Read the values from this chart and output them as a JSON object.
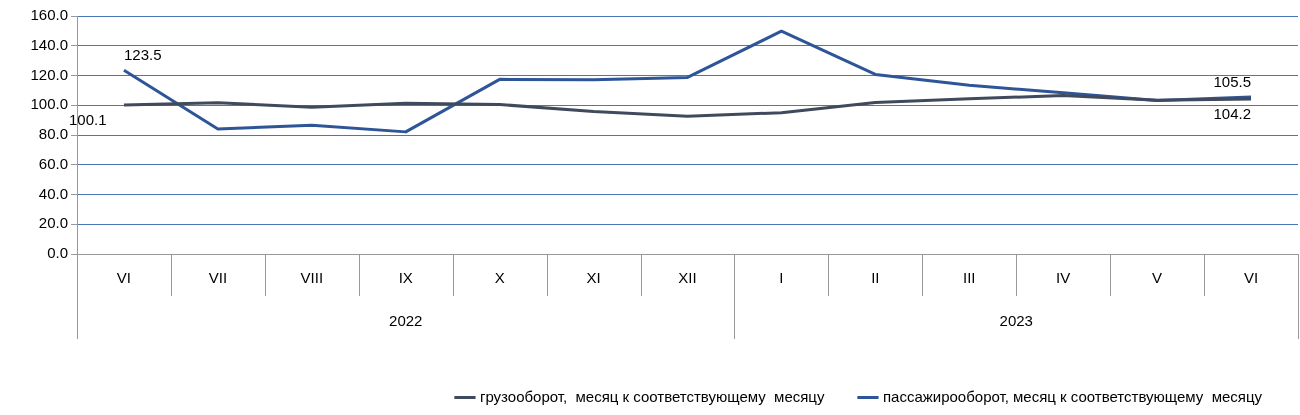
{
  "chart_data": {
    "type": "line",
    "categories": [
      "VI",
      "VII",
      "VIII",
      "IX",
      "X",
      "XI",
      "XII",
      "I",
      "II",
      "III",
      "IV",
      "V",
      "VI"
    ],
    "series": [
      {
        "name": "грузооборот,  месяц к соответствующему  месяцу",
        "color": "#3f4a5c",
        "values": [
          100.1,
          101.6,
          98.7,
          101.3,
          100.5,
          95.8,
          92.6,
          95.0,
          101.8,
          104.3,
          106.6,
          103.4,
          104.2
        ],
        "value_labels": [
          "100.1",
          null,
          null,
          null,
          null,
          null,
          null,
          null,
          null,
          null,
          null,
          null,
          "104.2"
        ]
      },
      {
        "name": "пассажирооборот, месяц к соответствующему  месяцу",
        "color": "#2e5597",
        "values": [
          123.5,
          84.0,
          86.6,
          82.1,
          117.4,
          117.1,
          118.7,
          149.8,
          120.7,
          113.4,
          108.4,
          103.2,
          105.5
        ],
        "value_labels": [
          "123.5",
          null,
          null,
          null,
          null,
          null,
          null,
          null,
          null,
          null,
          null,
          null,
          "105.5"
        ]
      }
    ],
    "annotations": [
      "2022",
      "2023"
    ],
    "ylim": [
      0,
      160
    ],
    "yticks": [
      {
        "value": 0,
        "label": "0.0"
      },
      {
        "value": 20,
        "label": "20.0"
      },
      {
        "value": 40,
        "label": "40.0"
      },
      {
        "value": 60,
        "label": "60.0"
      },
      {
        "value": 80,
        "label": "80.0"
      },
      {
        "value": 100,
        "label": "100.0"
      },
      {
        "value": 120,
        "label": "120.0"
      },
      {
        "value": 140,
        "label": "140.0"
      },
      {
        "value": 160,
        "label": "160.0"
      }
    ],
    "grid": "y",
    "legend": "bottom",
    "marker": "none",
    "line_style": "solid"
  }
}
